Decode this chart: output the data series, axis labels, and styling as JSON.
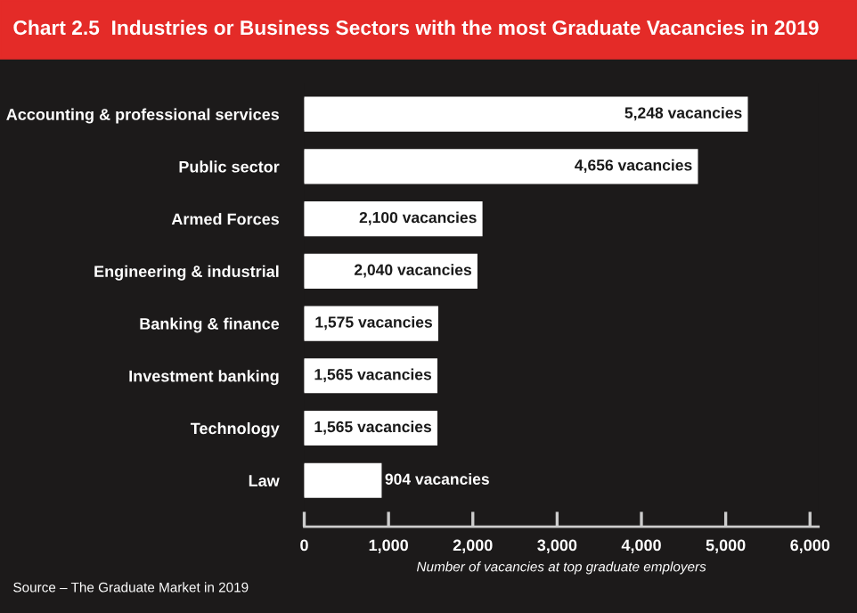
{
  "chart_data": {
    "type": "bar",
    "orientation": "horizontal",
    "title": "Chart 2.5  Industries or Business Sectors with the most Graduate Vacancies in 2019",
    "categories": [
      "Accounting & professional services",
      "Public sector",
      "Armed Forces",
      "Engineering & industrial",
      "Banking & finance",
      "Investment banking",
      "Technology",
      "Law"
    ],
    "values": [
      5248,
      4656,
      2100,
      2040,
      1575,
      1565,
      1565,
      904
    ],
    "value_labels": [
      "5,248 vacancies",
      "4,656 vacancies",
      "2,100 vacancies",
      "2,040 vacancies",
      "1,575 vacancies",
      "1,565 vacancies",
      "1,565 vacancies",
      "904 vacancies"
    ],
    "color": "#ffffff",
    "xlim": [
      0,
      6100
    ],
    "xticks": [
      0,
      {
        "value": 1000,
        "label": "1,000"
      },
      {
        "value": 2000,
        "label": "2,000"
      },
      {
        "value": 3000,
        "label": "3,000"
      },
      {
        "value": 4000,
        "label": "4,000"
      },
      {
        "value": 5000,
        "label": "5,000"
      },
      {
        "value": 6000,
        "label": "6,000"
      }
    ],
    "xlabel": "Number of vacancies at top graduate employers",
    "grid": false,
    "legend": false,
    "annotations": [
      "Source – The Graduate Market in 2019"
    ]
  }
}
